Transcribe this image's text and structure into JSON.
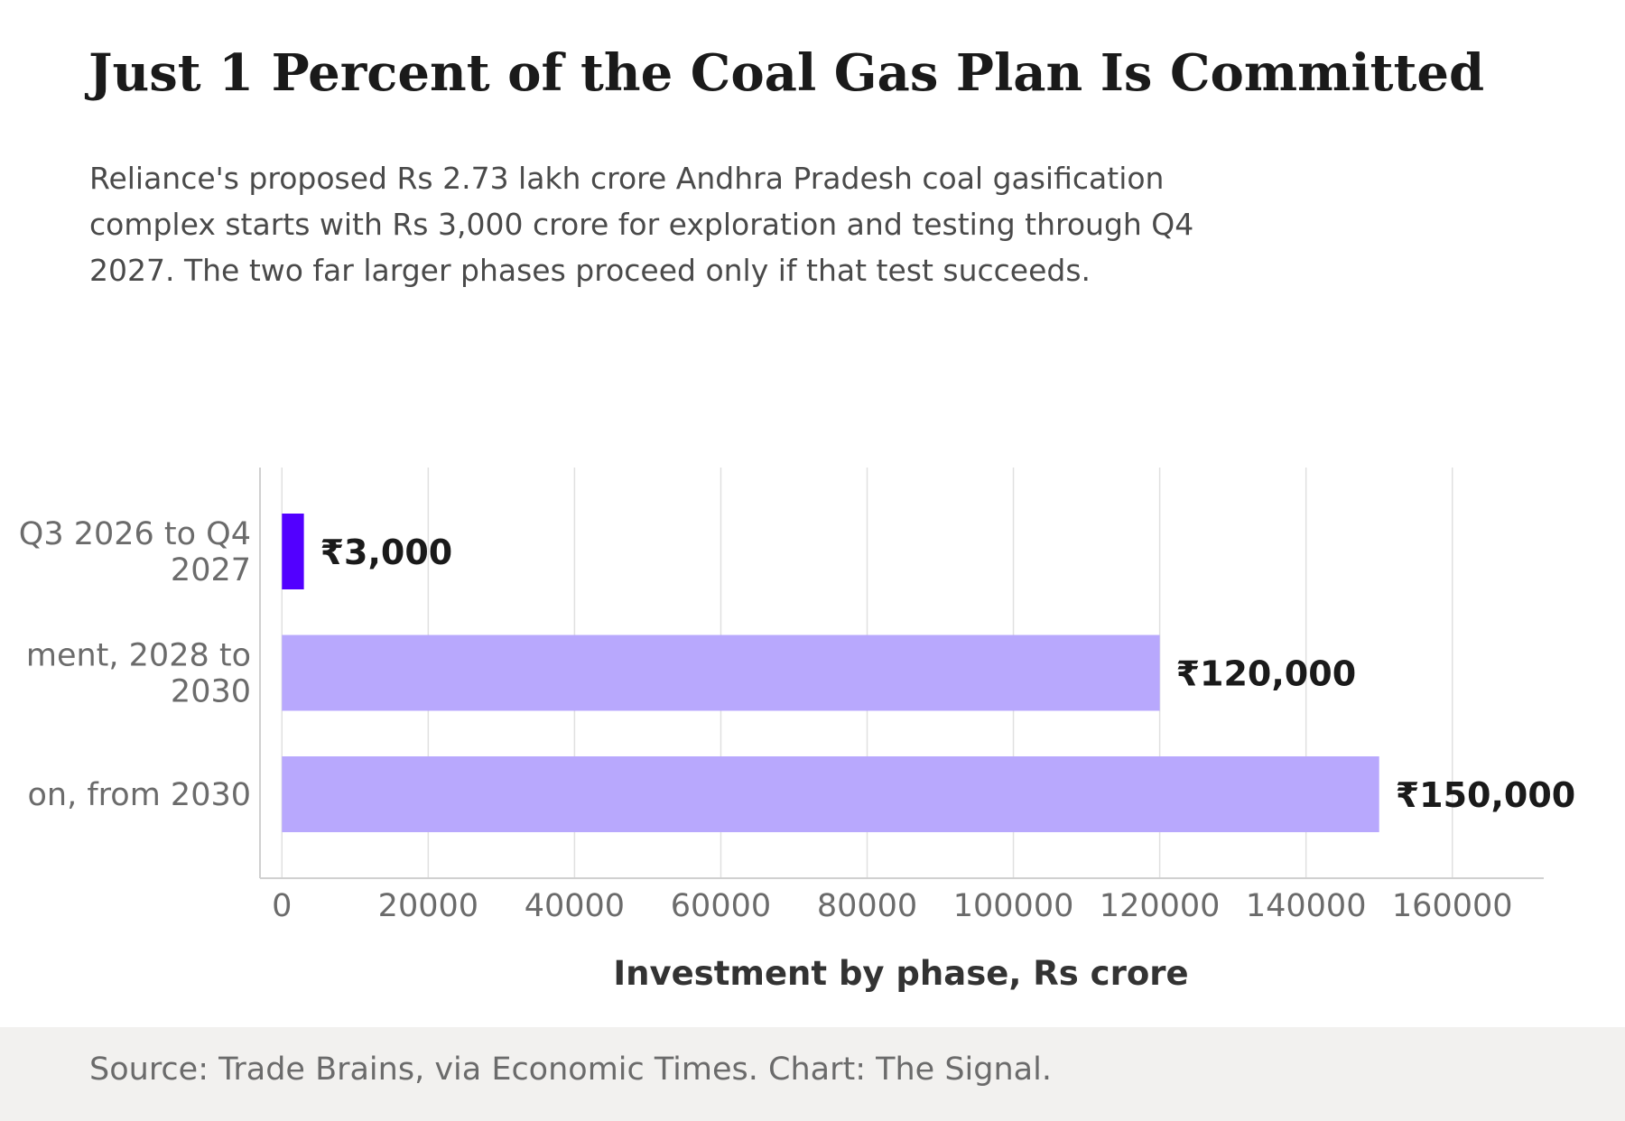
{
  "header": {
    "title": "Just 1 Percent of the Coal Gas Plan Is Committed",
    "subtitle": "Reliance's proposed Rs 2.73 lakh crore Andhra Pradesh coal gasification complex starts with Rs 3,000 crore for exploration and testing through Q4 2027. The two far larger phases proceed only if that test succeeds."
  },
  "footer": {
    "source": "Source: Trade Brains, via Economic Times. Chart: The Signal."
  },
  "colors": {
    "highlight": "#5200ff",
    "muted": "#b8a8fd",
    "grid": "#e0e0e0",
    "footer_bg": "#f2f1ef"
  },
  "chart_data": {
    "type": "bar",
    "orientation": "horizontal",
    "categories": [
      [
        "Q3 2026 to Q4",
        "2027"
      ],
      [
        "ment, 2028 to",
        "2030"
      ],
      [
        "on, from 2030"
      ]
    ],
    "values": [
      3000,
      120000,
      150000
    ],
    "value_labels": [
      "₹3,000",
      "₹120,000",
      "₹150,000"
    ],
    "highlight_index": 0,
    "xlabel": "Investment by phase, Rs crore",
    "ylabel": "",
    "xlim": [
      -3000,
      172500
    ],
    "xticks": [
      0,
      20000,
      40000,
      60000,
      80000,
      100000,
      120000,
      140000,
      160000
    ],
    "xtick_labels": [
      "0",
      "20000",
      "40000",
      "60000",
      "80000",
      "100000",
      "120000",
      "140000",
      "160000"
    ],
    "grid": "vertical"
  }
}
